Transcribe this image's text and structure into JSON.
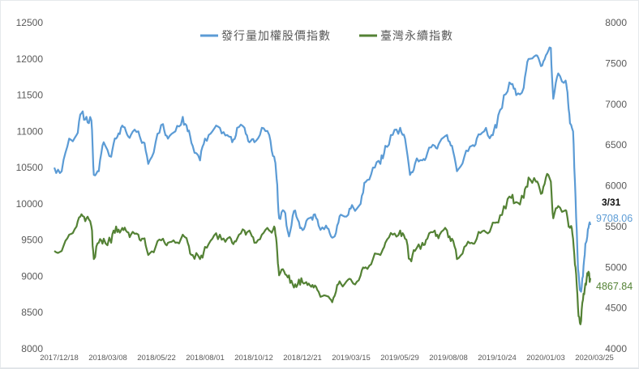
{
  "chart_data": {
    "type": "line",
    "title": "",
    "xlabel": "",
    "ylabel_left": "",
    "ylabel_right": "",
    "left_axis": {
      "min": 8000,
      "max": 12500,
      "ticks": [
        "12500",
        "12000",
        "11500",
        "11000",
        "10500",
        "10000",
        "9500",
        "9000",
        "8500",
        "8000"
      ]
    },
    "right_axis": {
      "min": 4000,
      "max": 8000,
      "ticks": [
        "8000",
        "7500",
        "7000",
        "6500",
        "6000",
        "5500",
        "5000",
        "4500",
        "4000"
      ]
    },
    "x_ticks": [
      "2017/12/18",
      "2018/03/08",
      "2018/05/22",
      "2018/08/01",
      "2018/10/12",
      "2018/12/21",
      "2019/03/15",
      "2019/05/29",
      "2019/08/08",
      "2019/10/24",
      "2020/01/03",
      "2020/03/25"
    ],
    "legend": {
      "position": "top",
      "entries": [
        "發行量加權股價指數",
        "臺灣永續指數"
      ]
    },
    "colors": {
      "taiex": "#5b9bd5",
      "sustain": "#548235"
    },
    "series": [
      {
        "name": "發行量加權股價指數",
        "axis": "left",
        "points": [
          [
            0,
            10500
          ],
          [
            3,
            10450
          ],
          [
            6,
            10900
          ],
          [
            9,
            10950
          ],
          [
            11,
            11250
          ],
          [
            13,
            11200
          ],
          [
            15,
            11150
          ],
          [
            16,
            10400
          ],
          [
            18,
            10450
          ],
          [
            20,
            10850
          ],
          [
            23,
            10650
          ],
          [
            25,
            10900
          ],
          [
            27,
            11050
          ],
          [
            29,
            11000
          ],
          [
            31,
            10950
          ],
          [
            34,
            11000
          ],
          [
            36,
            10850
          ],
          [
            38,
            10550
          ],
          [
            41,
            10850
          ],
          [
            44,
            11100
          ],
          [
            46,
            10900
          ],
          [
            49,
            11000
          ],
          [
            52,
            11200
          ],
          [
            54,
            11000
          ],
          [
            56,
            10800
          ],
          [
            59,
            10600
          ],
          [
            61,
            10900
          ],
          [
            64,
            11000
          ],
          [
            67,
            11050
          ],
          [
            70,
            10950
          ],
          [
            72,
            10850
          ],
          [
            74,
            11050
          ],
          [
            77,
            11050
          ],
          [
            79,
            10850
          ],
          [
            81,
            10850
          ],
          [
            84,
            11050
          ],
          [
            87,
            10950
          ],
          [
            89,
            10650
          ],
          [
            90,
            10350
          ],
          [
            91,
            9800
          ],
          [
            93,
            9900
          ],
          [
            95,
            9550
          ],
          [
            97,
            9900
          ],
          [
            99,
            9750
          ],
          [
            101,
            9650
          ],
          [
            103,
            9800
          ],
          [
            105,
            9850
          ],
          [
            107,
            9700
          ],
          [
            110,
            9700
          ],
          [
            112,
            9550
          ],
          [
            114,
            9600
          ],
          [
            116,
            9850
          ],
          [
            119,
            9850
          ],
          [
            121,
            9950
          ],
          [
            124,
            10000
          ],
          [
            126,
            10300
          ],
          [
            129,
            10500
          ],
          [
            132,
            10550
          ],
          [
            134,
            10800
          ],
          [
            137,
            10950
          ],
          [
            140,
            11050
          ],
          [
            142,
            10900
          ],
          [
            144,
            10400
          ],
          [
            146,
            10550
          ],
          [
            149,
            10600
          ],
          [
            151,
            10700
          ],
          [
            154,
            10800
          ],
          [
            156,
            10850
          ],
          [
            159,
            10950
          ],
          [
            161,
            10800
          ],
          [
            163,
            10450
          ],
          [
            166,
            10650
          ],
          [
            169,
            10800
          ],
          [
            171,
            10900
          ],
          [
            174,
            11000
          ],
          [
            177,
            10950
          ],
          [
            179,
            11050
          ],
          [
            182,
            11500
          ],
          [
            185,
            11650
          ],
          [
            187,
            11500
          ],
          [
            190,
            11600
          ],
          [
            192,
            12000
          ],
          [
            195,
            12050
          ],
          [
            197,
            11900
          ],
          [
            199,
            12050
          ],
          [
            201,
            12150
          ],
          [
            202,
            11450
          ],
          [
            204,
            11800
          ],
          [
            207,
            11700
          ],
          [
            208,
            11400
          ],
          [
            209,
            11100
          ],
          [
            210,
            11000
          ],
          [
            211,
            10100
          ],
          [
            212,
            9100
          ],
          [
            213,
            8800
          ],
          [
            214,
            9000
          ],
          [
            215,
            9450
          ],
          [
            216,
            9650
          ],
          [
            217,
            9708.06
          ]
        ]
      },
      {
        "name": "臺灣永續指數",
        "axis": "right",
        "points": [
          [
            0,
            5200
          ],
          [
            3,
            5200
          ],
          [
            6,
            5400
          ],
          [
            9,
            5500
          ],
          [
            11,
            5650
          ],
          [
            13,
            5600
          ],
          [
            15,
            5500
          ],
          [
            16,
            5100
          ],
          [
            18,
            5300
          ],
          [
            20,
            5350
          ],
          [
            23,
            5300
          ],
          [
            25,
            5500
          ],
          [
            27,
            5450
          ],
          [
            29,
            5450
          ],
          [
            31,
            5400
          ],
          [
            34,
            5400
          ],
          [
            36,
            5350
          ],
          [
            38,
            5150
          ],
          [
            41,
            5250
          ],
          [
            44,
            5350
          ],
          [
            46,
            5300
          ],
          [
            49,
            5300
          ],
          [
            52,
            5400
          ],
          [
            54,
            5300
          ],
          [
            56,
            5150
          ],
          [
            59,
            5100
          ],
          [
            61,
            5250
          ],
          [
            64,
            5350
          ],
          [
            67,
            5400
          ],
          [
            70,
            5350
          ],
          [
            72,
            5300
          ],
          [
            74,
            5350
          ],
          [
            77,
            5450
          ],
          [
            79,
            5450
          ],
          [
            81,
            5300
          ],
          [
            84,
            5400
          ],
          [
            87,
            5450
          ],
          [
            89,
            5500
          ],
          [
            90,
            5300
          ],
          [
            91,
            4900
          ],
          [
            93,
            4950
          ],
          [
            95,
            4900
          ],
          [
            97,
            4750
          ],
          [
            99,
            4850
          ],
          [
            101,
            4800
          ],
          [
            103,
            4800
          ],
          [
            105,
            4750
          ],
          [
            107,
            4700
          ],
          [
            110,
            4650
          ],
          [
            112,
            4600
          ],
          [
            114,
            4700
          ],
          [
            116,
            4800
          ],
          [
            119,
            4850
          ],
          [
            121,
            4800
          ],
          [
            124,
            4900
          ],
          [
            126,
            5000
          ],
          [
            129,
            5100
          ],
          [
            132,
            5150
          ],
          [
            134,
            5300
          ],
          [
            137,
            5400
          ],
          [
            140,
            5450
          ],
          [
            142,
            5350
          ],
          [
            144,
            5100
          ],
          [
            146,
            5200
          ],
          [
            149,
            5300
          ],
          [
            151,
            5350
          ],
          [
            154,
            5450
          ],
          [
            156,
            5400
          ],
          [
            159,
            5450
          ],
          [
            161,
            5350
          ],
          [
            163,
            5100
          ],
          [
            166,
            5250
          ],
          [
            169,
            5300
          ],
          [
            171,
            5350
          ],
          [
            174,
            5450
          ],
          [
            177,
            5500
          ],
          [
            179,
            5550
          ],
          [
            182,
            5750
          ],
          [
            185,
            5850
          ],
          [
            187,
            5800
          ],
          [
            190,
            5850
          ],
          [
            192,
            6100
          ],
          [
            195,
            6050
          ],
          [
            197,
            5900
          ],
          [
            199,
            6100
          ],
          [
            201,
            6050
          ],
          [
            202,
            5600
          ],
          [
            204,
            5750
          ],
          [
            207,
            5700
          ],
          [
            208,
            5550
          ],
          [
            209,
            5500
          ],
          [
            210,
            5350
          ],
          [
            211,
            5000
          ],
          [
            212,
            4500
          ],
          [
            213,
            4300
          ],
          [
            214,
            4600
          ],
          [
            215,
            4800
          ],
          [
            216,
            4900
          ],
          [
            217,
            4867.84
          ]
        ]
      }
    ],
    "annotations": {
      "date": "3/31",
      "taiex_last": "9708.06",
      "sustain_last": "4867.84"
    }
  }
}
